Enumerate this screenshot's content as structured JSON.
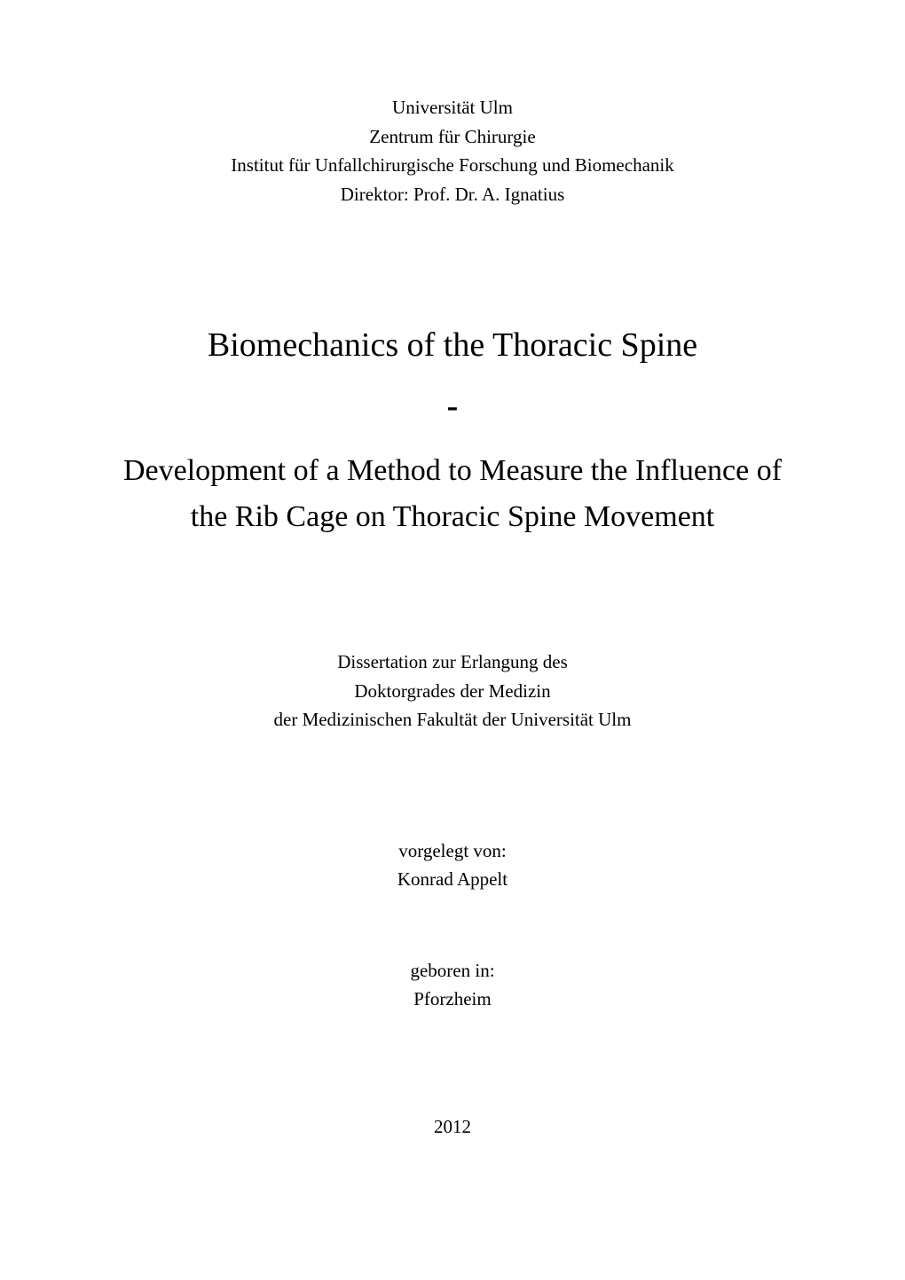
{
  "colors": {
    "background": "#ffffff",
    "text": "#000000"
  },
  "typography": {
    "font_family": "Times New Roman",
    "body_fontsize_pt": 12,
    "title_fontsize_pt": 22,
    "subtitle_fontsize_pt": 20
  },
  "affiliation": {
    "lines": [
      "Universität Ulm",
      "Zentrum für Chirurgie",
      "Institut für Unfallchirurgische Forschung und Biomechanik",
      "Direktor: Prof. Dr. A. Ignatius"
    ]
  },
  "title": {
    "main": "Biomechanics of the Thoracic Spine",
    "separator": "-",
    "sub_line1": "Development of a Method to Measure the Influence of",
    "sub_line2": "the Rib Cage on Thoracic Spine Movement"
  },
  "degree": {
    "lines": [
      "Dissertation zur Erlangung des",
      "Doktorgrades der Medizin",
      "der Medizinischen Fakultät der Universität Ulm"
    ]
  },
  "author": {
    "label": "vorgelegt von:",
    "name": "Konrad Appelt"
  },
  "birth": {
    "label": "geboren in:",
    "place": "Pforzheim"
  },
  "year": "2012"
}
